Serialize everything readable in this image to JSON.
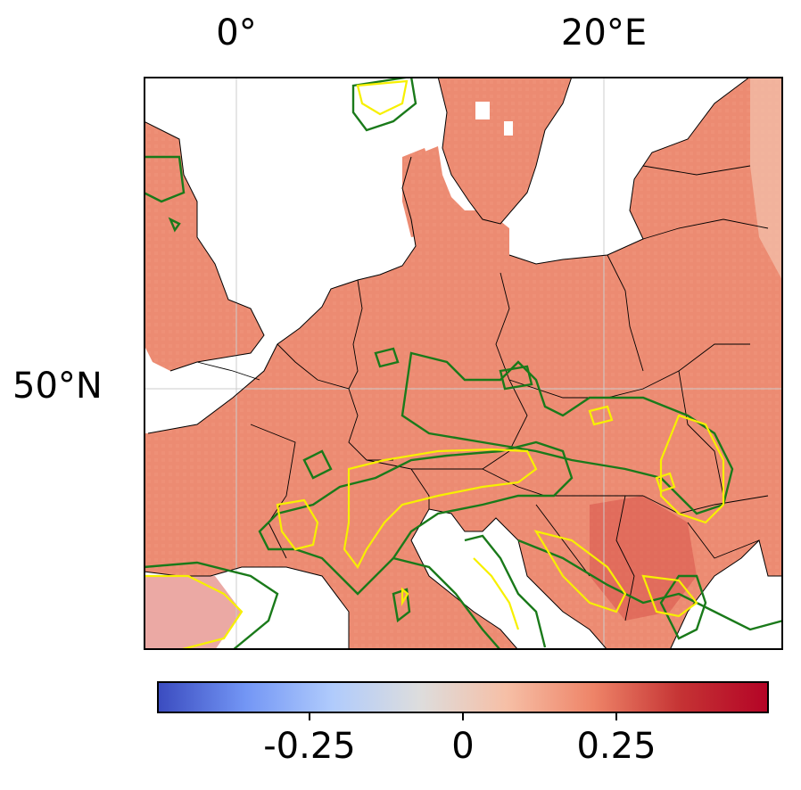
{
  "axes": {
    "lon_ticks": [
      {
        "label": "0°",
        "lon": 0
      },
      {
        "label": "20°E",
        "lon": 20
      }
    ],
    "lat_ticks": [
      {
        "label": "50°N",
        "lat": 50
      }
    ]
  },
  "colorbar": {
    "colormap": "coolwarm",
    "range": [
      -0.5,
      0.5
    ],
    "ticks": [
      {
        "label": "-0.25",
        "value": -0.25
      },
      {
        "label": "0",
        "value": 0
      },
      {
        "label": "0.25",
        "value": 0.25
      }
    ],
    "colors": [
      "#3b4cc0",
      "#7396f5",
      "#b0cbfc",
      "#dddddd",
      "#f6bfa6",
      "#ee8468",
      "#c53334",
      "#b40426"
    ]
  },
  "map": {
    "land_value_typical": 0.25,
    "land_color": "#ec8b72",
    "ocean_color": "#ffffff",
    "contour_colors": {
      "outer": "#1a7a1a",
      "inner": "#f7f000"
    },
    "gridline_color": "#cccccc",
    "border_color": "#000000"
  }
}
